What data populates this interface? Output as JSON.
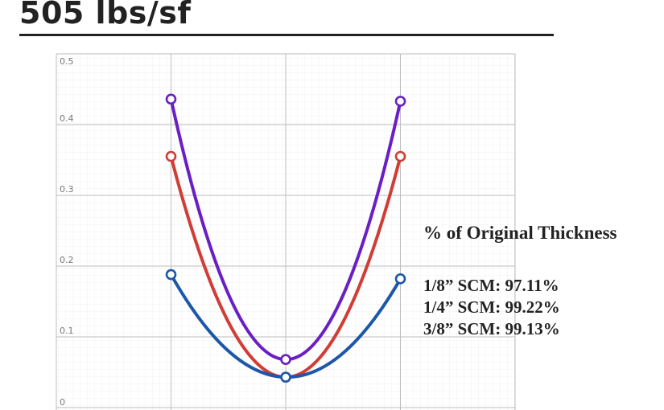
{
  "header": {
    "title": "505 lbs/sf"
  },
  "chart_data": {
    "type": "line",
    "title": "",
    "xlabel": "",
    "ylabel": "",
    "x": [
      1,
      2,
      3
    ],
    "ylim": [
      0,
      0.5
    ],
    "y_ticks": [
      "0",
      "0.1",
      "0.2",
      "0.3",
      "0.4",
      "0.5"
    ],
    "grid": true,
    "smooth": true,
    "markers": "open-circle",
    "series": [
      {
        "color": "#6a1fc4",
        "values": [
          0.436,
          0.068,
          0.433
        ]
      },
      {
        "color": "#d03d35",
        "values": [
          0.355,
          0.043,
          0.355
        ]
      },
      {
        "color": "#1c57a8",
        "values": [
          0.188,
          0.043,
          0.182
        ]
      }
    ]
  },
  "annotation": {
    "heading": "% of Original Thickness",
    "lines": [
      "1/8” SCM: 97.11%",
      "1/4” SCM: 99.22%",
      "3/8” SCM: 99.13%"
    ]
  }
}
